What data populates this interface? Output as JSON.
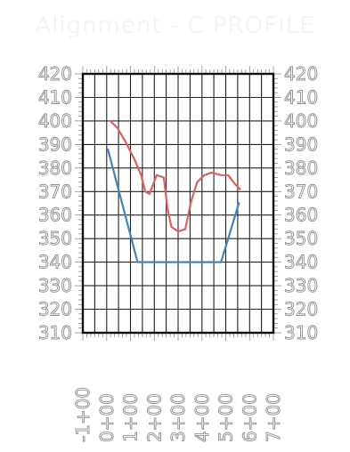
{
  "title": "Alignment - C PROFILE",
  "colors": {
    "background": "#ffffff",
    "grid": "#222222",
    "frame": "#111111",
    "ground": "#e06060",
    "design": "#3f84c4",
    "labels": "#8f8f8f"
  },
  "chart_data": {
    "type": "line",
    "title": "Alignment - C PROFILE",
    "xlabel": "",
    "ylabel": "",
    "xlim": [
      -1,
      7
    ],
    "ylim": [
      310,
      420
    ],
    "grid": true,
    "y_ticks": [
      "420",
      "410",
      "400",
      "390",
      "380",
      "370",
      "360",
      "350",
      "340",
      "330",
      "320",
      "310"
    ],
    "x_ticks": [
      "-1+00",
      "0+00",
      "1+00",
      "2+00",
      "3+00",
      "4+00",
      "5+00",
      "6+00",
      "7+00"
    ],
    "series": [
      {
        "key": "ground",
        "color": "#e06060",
        "x": [
          0.15,
          0.45,
          0.8,
          1.2,
          1.45,
          1.62,
          1.8,
          2.1,
          2.4,
          2.55,
          2.72,
          3.0,
          3.3,
          3.55,
          3.8,
          4.1,
          4.4,
          4.8,
          5.1,
          5.4,
          5.6
        ],
        "y": [
          400,
          397,
          391,
          383,
          377,
          370,
          369,
          377,
          376,
          363,
          355,
          353,
          354,
          366,
          374,
          377,
          378,
          377,
          377,
          373,
          371
        ]
      },
      {
        "key": "design",
        "color": "#3f84c4",
        "x": [
          0.05,
          1.3,
          4.8,
          5.55
        ],
        "y": [
          388,
          340,
          340,
          365
        ]
      }
    ]
  }
}
